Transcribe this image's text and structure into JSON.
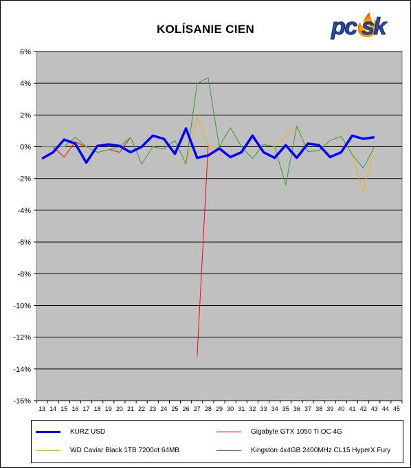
{
  "chart_data": {
    "type": "line",
    "title": "KOLÍSANIE CIEN",
    "xlabel": "",
    "ylabel": "",
    "x": [
      13,
      14,
      15,
      16,
      17,
      18,
      19,
      20,
      21,
      22,
      23,
      24,
      25,
      26,
      27,
      28,
      29,
      30,
      31,
      32,
      33,
      34,
      35,
      36,
      37,
      38,
      39,
      40,
      41,
      42,
      43,
      44,
      45
    ],
    "ylim": [
      -16,
      6
    ],
    "yticks": [
      6,
      4,
      2,
      0,
      -2,
      -4,
      -6,
      -8,
      -10,
      -12,
      -14,
      -16
    ],
    "ytick_labels": [
      "6%",
      "4%",
      "2%",
      "0%",
      "-2%",
      "-4%",
      "-6%",
      "-8%",
      "-10%",
      "-12%",
      "-14%",
      "-16%"
    ],
    "grid": "horizontal",
    "legend": "bottom",
    "series": [
      {
        "name": "Gigabyte GTX 1050 Ti OC 4G",
        "color": "#ff0000",
        "width": 1,
        "values": [
          0,
          0,
          -0.65,
          0.3,
          0,
          null,
          -0.15,
          -0.35,
          0.6,
          null,
          null,
          null,
          null,
          null,
          -13.2,
          0.1,
          null,
          null,
          null,
          null,
          null,
          null,
          null,
          null,
          null,
          null,
          null,
          null,
          null,
          null,
          null,
          null,
          null
        ]
      },
      {
        "name": "WD Caviar Black 1TB 7200ot 64MB",
        "color": "#ffb000",
        "width": 1,
        "values": [
          0,
          0,
          0,
          0.2,
          0,
          -0.35,
          -0.2,
          0,
          0.6,
          -1.1,
          0,
          -0.15,
          0.4,
          -1.1,
          1.9,
          0,
          0,
          1.2,
          0,
          -0.75,
          0.15,
          0,
          0.65,
          1.3,
          -0.3,
          -0.25,
          0.4,
          0.65,
          -0.5,
          -2.85,
          0,
          null,
          null
        ]
      },
      {
        "name": "Kingston 4x4GB 2400MHz CL15 HyperX Fury",
        "color": "#3a9a3a",
        "width": 1,
        "values": [
          0,
          0,
          0,
          0.6,
          0,
          -0.35,
          -0.2,
          0,
          0.6,
          -1.1,
          0,
          -0.15,
          0.4,
          -1.1,
          4.0,
          4.35,
          0,
          1.2,
          0,
          -0.75,
          0.15,
          0,
          -2.4,
          1.3,
          -0.3,
          -0.25,
          0.4,
          0.65,
          -0.5,
          -1.35,
          0,
          null,
          null
        ]
      },
      {
        "name": "KURZ USD",
        "color": "#0000ff",
        "width": 3.5,
        "values": [
          -0.75,
          -0.35,
          0.45,
          0.2,
          -1.0,
          0.05,
          0.15,
          0.05,
          -0.35,
          0.0,
          0.7,
          0.5,
          -0.45,
          1.15,
          -0.7,
          -0.55,
          -0.1,
          -0.65,
          -0.35,
          0.7,
          -0.35,
          -0.7,
          0.1,
          -0.7,
          0.2,
          0.1,
          -0.65,
          -0.35,
          0.7,
          0.5,
          0.6,
          null,
          null
        ]
      }
    ]
  },
  "legend_items": [
    {
      "label": "KURZ USD",
      "color": "#0000ff",
      "width": 3.5
    },
    {
      "label": "Gigabyte GTX 1050 Ti OC 4G",
      "color": "#ff0000",
      "width": 1
    },
    {
      "label": "WD Caviar Black 1TB 7200ot 64MB",
      "color": "#ffb000",
      "width": 1
    },
    {
      "label": "Kingston 4x4GB 2400MHz CL15 HyperX Fury",
      "color": "#3a9a3a",
      "width": 1
    }
  ],
  "logo": {
    "text": "pcosk",
    "colors": {
      "text": "#2a4aa8",
      "flame": "#ff8a00"
    }
  },
  "colors": {
    "plot_bg": "#c0c0c0",
    "grid": "#000000"
  }
}
